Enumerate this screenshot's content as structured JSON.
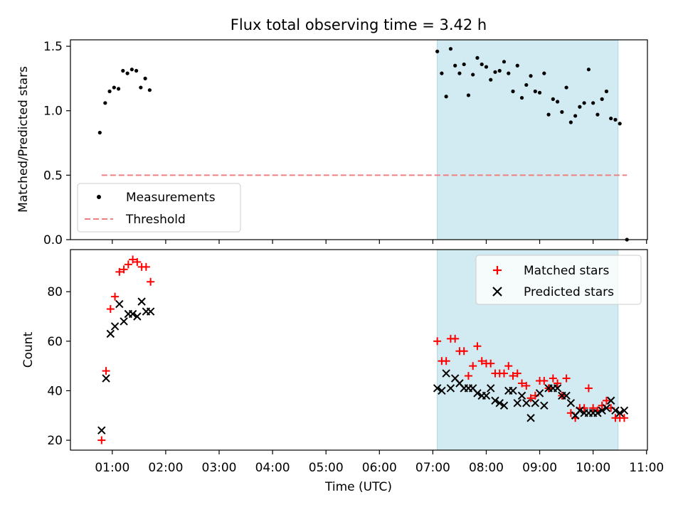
{
  "figure": {
    "title": "Flux total observing time = 3.42 h",
    "xlabel": "Time (UTC)",
    "x_ticks": [
      "01:00",
      "02:00",
      "03:00",
      "04:00",
      "05:00",
      "06:00",
      "07:00",
      "08:00",
      "09:00",
      "10:00",
      "11:00"
    ],
    "shaded_color": "#add8e6",
    "shaded_span": [
      "07:05",
      "10:28"
    ]
  },
  "chart_data": [
    {
      "type": "scatter",
      "ylabel": "Matched/Predicted stars",
      "ylim": [
        0,
        1.55
      ],
      "yticks": [
        "0.0",
        "0.5",
        "1.0",
        "1.5"
      ],
      "xlim": [
        "00:13",
        "11:01"
      ],
      "threshold": {
        "label": "Threshold",
        "value": 0.5,
        "x": [
          "00:48",
          "10:38"
        ],
        "color": "#f08080",
        "style": "dashed"
      },
      "legend": {
        "placement": "lower-left"
      },
      "series": [
        {
          "name": "Measurements",
          "color": "#000000",
          "marker": "dot",
          "points": [
            [
              "00:46",
              0.83
            ],
            [
              "00:52",
              1.06
            ],
            [
              "00:57",
              1.15
            ],
            [
              "01:02",
              1.18
            ],
            [
              "01:07",
              1.17
            ],
            [
              "01:12",
              1.31
            ],
            [
              "01:17",
              1.29
            ],
            [
              "01:22",
              1.32
            ],
            [
              "01:27",
              1.31
            ],
            [
              "01:32",
              1.18
            ],
            [
              "01:37",
              1.25
            ],
            [
              "01:42",
              1.16
            ],
            [
              "07:05",
              1.46
            ],
            [
              "07:10",
              1.29
            ],
            [
              "07:15",
              1.11
            ],
            [
              "07:20",
              1.48
            ],
            [
              "07:25",
              1.35
            ],
            [
              "07:30",
              1.29
            ],
            [
              "07:35",
              1.36
            ],
            [
              "07:40",
              1.12
            ],
            [
              "07:45",
              1.28
            ],
            [
              "07:50",
              1.41
            ],
            [
              "07:55",
              1.36
            ],
            [
              "08:00",
              1.34
            ],
            [
              "08:05",
              1.24
            ],
            [
              "08:10",
              1.3
            ],
            [
              "08:15",
              1.31
            ],
            [
              "08:20",
              1.38
            ],
            [
              "08:25",
              1.29
            ],
            [
              "08:30",
              1.15
            ],
            [
              "08:35",
              1.35
            ],
            [
              "08:40",
              1.1
            ],
            [
              "08:45",
              1.2
            ],
            [
              "08:50",
              1.27
            ],
            [
              "08:55",
              1.15
            ],
            [
              "09:00",
              1.14
            ],
            [
              "09:05",
              1.29
            ],
            [
              "09:10",
              0.97
            ],
            [
              "09:15",
              1.09
            ],
            [
              "09:20",
              1.07
            ],
            [
              "09:25",
              0.99
            ],
            [
              "09:30",
              1.18
            ],
            [
              "09:35",
              0.91
            ],
            [
              "09:40",
              0.96
            ],
            [
              "09:45",
              1.03
            ],
            [
              "09:50",
              1.06
            ],
            [
              "09:55",
              1.32
            ],
            [
              "10:00",
              1.06
            ],
            [
              "10:05",
              0.97
            ],
            [
              "10:10",
              1.09
            ],
            [
              "10:15",
              1.15
            ],
            [
              "10:20",
              0.94
            ],
            [
              "10:25",
              0.93
            ],
            [
              "10:30",
              0.9
            ],
            [
              "10:38",
              0.0
            ]
          ]
        }
      ]
    },
    {
      "type": "scatter",
      "ylabel": "Count",
      "ylim": [
        16,
        97
      ],
      "yticks": [
        "20",
        "40",
        "60",
        "80"
      ],
      "xlim": [
        "00:13",
        "11:01"
      ],
      "legend": {
        "placement": "top-right"
      },
      "series": [
        {
          "name": "Matched stars",
          "color": "#ff0000",
          "marker": "plus",
          "points": [
            [
              "00:48",
              20
            ],
            [
              "00:53",
              48
            ],
            [
              "00:58",
              73
            ],
            [
              "01:03",
              78
            ],
            [
              "01:08",
              88
            ],
            [
              "01:13",
              89
            ],
            [
              "01:18",
              91
            ],
            [
              "01:23",
              93
            ],
            [
              "01:28",
              92
            ],
            [
              "01:33",
              90
            ],
            [
              "01:38",
              90
            ],
            [
              "01:43",
              84
            ],
            [
              "07:05",
              60
            ],
            [
              "07:10",
              52
            ],
            [
              "07:15",
              52
            ],
            [
              "07:20",
              61
            ],
            [
              "07:25",
              61
            ],
            [
              "07:30",
              56
            ],
            [
              "07:35",
              56
            ],
            [
              "07:40",
              46
            ],
            [
              "07:45",
              50
            ],
            [
              "07:50",
              58
            ],
            [
              "07:55",
              52
            ],
            [
              "08:00",
              51
            ],
            [
              "08:05",
              51
            ],
            [
              "08:10",
              47
            ],
            [
              "08:15",
              47
            ],
            [
              "08:20",
              47
            ],
            [
              "08:25",
              50
            ],
            [
              "08:30",
              46
            ],
            [
              "08:35",
              47
            ],
            [
              "08:40",
              43
            ],
            [
              "08:45",
              42
            ],
            [
              "08:50",
              37
            ],
            [
              "08:55",
              38
            ],
            [
              "09:00",
              44
            ],
            [
              "09:05",
              44
            ],
            [
              "09:10",
              41
            ],
            [
              "09:15",
              45
            ],
            [
              "09:20",
              43
            ],
            [
              "09:25",
              38
            ],
            [
              "09:30",
              45
            ],
            [
              "09:35",
              31
            ],
            [
              "09:40",
              29
            ],
            [
              "09:45",
              33
            ],
            [
              "09:50",
              33
            ],
            [
              "09:55",
              41
            ],
            [
              "10:00",
              33
            ],
            [
              "10:05",
              32
            ],
            [
              "10:10",
              34
            ],
            [
              "10:15",
              36
            ],
            [
              "10:20",
              33
            ],
            [
              "10:25",
              29
            ],
            [
              "10:30",
              29
            ],
            [
              "10:35",
              29
            ]
          ]
        },
        {
          "name": "Predicted stars",
          "color": "#000000",
          "marker": "x",
          "points": [
            [
              "00:48",
              24
            ],
            [
              "00:53",
              45
            ],
            [
              "00:58",
              63
            ],
            [
              "01:03",
              66
            ],
            [
              "01:08",
              75
            ],
            [
              "01:13",
              68
            ],
            [
              "01:18",
              71
            ],
            [
              "01:23",
              71
            ],
            [
              "01:28",
              70
            ],
            [
              "01:33",
              76
            ],
            [
              "01:38",
              72
            ],
            [
              "01:43",
              72
            ],
            [
              "07:05",
              41
            ],
            [
              "07:10",
              40
            ],
            [
              "07:15",
              47
            ],
            [
              "07:20",
              41
            ],
            [
              "07:25",
              45
            ],
            [
              "07:30",
              43
            ],
            [
              "07:35",
              41
            ],
            [
              "07:40",
              41
            ],
            [
              "07:45",
              41
            ],
            [
              "07:50",
              39
            ],
            [
              "07:55",
              38
            ],
            [
              "08:00",
              38
            ],
            [
              "08:05",
              41
            ],
            [
              "08:10",
              36
            ],
            [
              "08:15",
              35
            ],
            [
              "08:20",
              34
            ],
            [
              "08:25",
              40
            ],
            [
              "08:30",
              40
            ],
            [
              "08:35",
              35
            ],
            [
              "08:40",
              38
            ],
            [
              "08:45",
              35
            ],
            [
              "08:50",
              29
            ],
            [
              "08:55",
              35
            ],
            [
              "09:00",
              39
            ],
            [
              "09:05",
              34
            ],
            [
              "09:10",
              41
            ],
            [
              "09:15",
              41
            ],
            [
              "09:20",
              41
            ],
            [
              "09:25",
              38
            ],
            [
              "09:30",
              38
            ],
            [
              "09:35",
              35
            ],
            [
              "09:40",
              30
            ],
            [
              "09:45",
              32
            ],
            [
              "09:50",
              31
            ],
            [
              "09:55",
              31
            ],
            [
              "10:00",
              31
            ],
            [
              "10:05",
              31
            ],
            [
              "10:10",
              32
            ],
            [
              "10:15",
              33
            ],
            [
              "10:20",
              36
            ],
            [
              "10:25",
              32
            ],
            [
              "10:30",
              31
            ],
            [
              "10:35",
              32
            ]
          ]
        }
      ]
    }
  ]
}
